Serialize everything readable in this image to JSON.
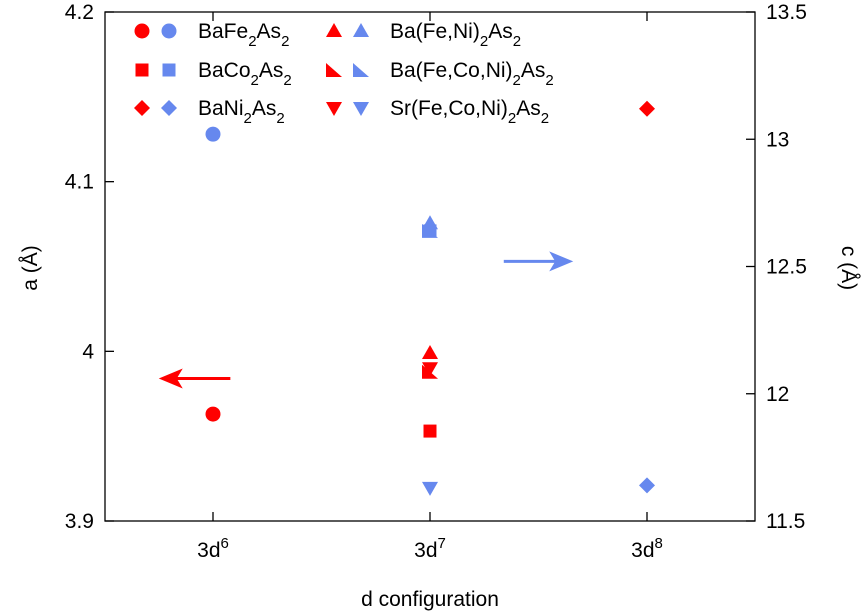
{
  "chart_data": {
    "type": "scatter",
    "xlabel": "d configuration",
    "ylabel_left": "a (Å)",
    "ylabel_right": "c (Å)",
    "categories": [
      "3d6",
      "3d7",
      "3d8"
    ],
    "category_labels": [
      {
        "base": "3d",
        "sup": "6"
      },
      {
        "base": "3d",
        "sup": "7"
      },
      {
        "base": "3d",
        "sup": "8"
      }
    ],
    "ylim_left": [
      3.9,
      4.2
    ],
    "ylim_right": [
      11.5,
      13.5
    ],
    "left_ticks": [
      "3.9",
      "4",
      "4.1",
      "4.2"
    ],
    "right_ticks": [
      "11.5",
      "12",
      "12.5",
      "13",
      "13.5"
    ],
    "colors": {
      "a": "#ff0000",
      "c": "#6688ee"
    },
    "legend": [
      {
        "shape": "circle",
        "parts": [
          [
            "BaFe",
            ""
          ],
          [
            "2",
            "sub"
          ],
          [
            "As",
            ""
          ],
          [
            "2",
            "sub"
          ]
        ]
      },
      {
        "shape": "square",
        "parts": [
          [
            "BaCo",
            ""
          ],
          [
            "2",
            "sub"
          ],
          [
            "As",
            ""
          ],
          [
            "2",
            "sub"
          ]
        ]
      },
      {
        "shape": "diamond",
        "parts": [
          [
            "BaNi",
            ""
          ],
          [
            "2",
            "sub"
          ],
          [
            "As",
            ""
          ],
          [
            "2",
            "sub"
          ]
        ]
      },
      {
        "shape": "triangle-up",
        "parts": [
          [
            "Ba(Fe,Ni)",
            ""
          ],
          [
            "2",
            "sub"
          ],
          [
            "As",
            ""
          ],
          [
            "2",
            "sub"
          ]
        ]
      },
      {
        "shape": "half-triangle",
        "parts": [
          [
            "Ba(Fe,Co,Ni)",
            ""
          ],
          [
            "2",
            "sub"
          ],
          [
            "As",
            ""
          ],
          [
            "2",
            "sub"
          ]
        ]
      },
      {
        "shape": "triangle-down",
        "parts": [
          [
            "Sr(Fe,Co,Ni)",
            ""
          ],
          [
            "2",
            "sub"
          ],
          [
            "As",
            ""
          ],
          [
            "2",
            "sub"
          ]
        ]
      }
    ],
    "series": [
      {
        "compound": "BaFe2As2",
        "shape": "circle",
        "a": [
          {
            "x": "3d6",
            "y": 3.963
          }
        ],
        "c": [
          {
            "x": "3d6",
            "y": 13.02
          }
        ]
      },
      {
        "compound": "BaCo2As2",
        "shape": "square",
        "a": [
          {
            "x": "3d7",
            "y": 3.953
          }
        ],
        "c": [
          {
            "x": "3d7",
            "y": 12.64
          }
        ]
      },
      {
        "compound": "BaNi2As2",
        "shape": "diamond",
        "a": [
          {
            "x": "3d8",
            "y": 4.143
          }
        ],
        "c": [
          {
            "x": "3d8",
            "y": 11.64
          }
        ]
      },
      {
        "compound": "Ba(Fe,Ni)2As2",
        "shape": "triangle-up",
        "a": [
          {
            "x": "3d7",
            "y": 3.999
          }
        ],
        "c": [
          {
            "x": "3d7",
            "y": 12.67
          }
        ]
      },
      {
        "compound": "Ba(Fe,Co,Ni)2As2",
        "shape": "half-triangle",
        "a": [
          {
            "x": "3d7",
            "y": 3.988
          }
        ],
        "c": [
          {
            "x": "3d7",
            "y": 12.64
          }
        ]
      },
      {
        "compound": "Sr(Fe,Co,Ni)2As2",
        "shape": "triangle-down",
        "a": [
          {
            "x": "3d7",
            "y": 3.99
          }
        ],
        "c": [
          {
            "x": "3d7",
            "y": 11.63
          }
        ]
      }
    ],
    "annotations": [
      {
        "type": "arrow",
        "direction": "left",
        "axis": "a",
        "x_from": 0.08,
        "x_to": -0.25,
        "y": 3.984
      },
      {
        "type": "arrow",
        "direction": "right",
        "axis": "c",
        "x_from": 1.34,
        "x_to": 1.66,
        "y": 12.52
      }
    ],
    "legend_position": "top-left",
    "grid": false
  }
}
